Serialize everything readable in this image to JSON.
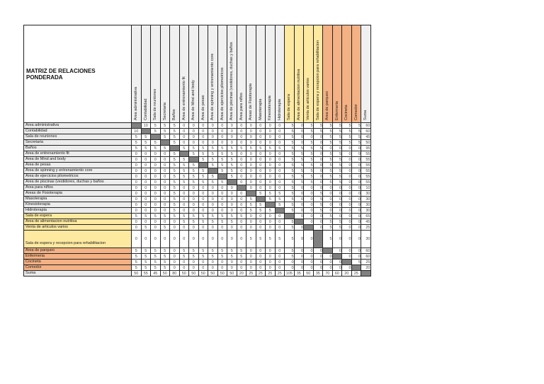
{
  "title": "MATRIZ DE RELACIONES PONDERADA",
  "columns": [
    {
      "label": "Area administrativa",
      "group": "g"
    },
    {
      "label": "Contabilidad",
      "group": "g"
    },
    {
      "label": "Sala de reuniones",
      "group": "g"
    },
    {
      "label": "Secretaria",
      "group": "g"
    },
    {
      "label": "Baños",
      "group": "g"
    },
    {
      "label": "Area de entrenamiento fit",
      "group": "g"
    },
    {
      "label": "Area de Mind and body",
      "group": "g"
    },
    {
      "label": "Area de pesas",
      "group": "g"
    },
    {
      "label": "Area de spinning y entrenamiento core",
      "group": "g"
    },
    {
      "label": "Area de ejercicios pliometricos",
      "group": "g"
    },
    {
      "label": "Area de piscinas (vestidores, duchas y baños",
      "group": "g"
    },
    {
      "label": "Area para niños",
      "group": "g"
    },
    {
      "label": "Areas de Fisioterapia",
      "group": "g"
    },
    {
      "label": "Masoterapia",
      "group": "g"
    },
    {
      "label": "Kinesioterapia",
      "group": "g"
    },
    {
      "label": "Hidroterapia",
      "group": "g"
    },
    {
      "label": "Sala de espera",
      "group": "y"
    },
    {
      "label": "Area de alimentacion nutritiva",
      "group": "y"
    },
    {
      "label": "Venta de articulos varios",
      "group": "y"
    },
    {
      "label": "Sala de espera y recepcion para rehabilitacion",
      "group": "y"
    },
    {
      "label": "Area de parqueo",
      "group": "o"
    },
    {
      "label": "Enfermeria",
      "group": "o"
    },
    {
      "label": "Cocineta",
      "group": "o"
    },
    {
      "label": "Comedor",
      "group": "o"
    },
    {
      "label": "Suma",
      "group": "g"
    }
  ],
  "rows": [
    {
      "label": "Area administrativa",
      "group": "g",
      "values": [
        "",
        10,
        5,
        5,
        5,
        0,
        0,
        0,
        0,
        0,
        0,
        0,
        0,
        0,
        0,
        0,
        5,
        0,
        5,
        5,
        5,
        5,
        5,
        5,
        60
      ]
    },
    {
      "label": "Contabilidad",
      "group": "g",
      "values": [
        10,
        "",
        5,
        5,
        5,
        0,
        0,
        0,
        0,
        0,
        0,
        0,
        0,
        0,
        0,
        0,
        5,
        0,
        5,
        5,
        5,
        5,
        5,
        5,
        60
      ]
    },
    {
      "label": "Sala de reuniones",
      "group": "g",
      "values": [
        5,
        5,
        "",
        5,
        5,
        0,
        0,
        0,
        0,
        0,
        0,
        0,
        0,
        0,
        0,
        0,
        5,
        0,
        0,
        0,
        5,
        5,
        5,
        5,
        45
      ]
    },
    {
      "label": "Secretaria",
      "group": "g",
      "values": [
        5,
        5,
        5,
        "",
        5,
        0,
        0,
        0,
        0,
        0,
        0,
        0,
        0,
        0,
        0,
        0,
        5,
        0,
        5,
        0,
        5,
        5,
        5,
        5,
        50
      ]
    },
    {
      "label": "Baños",
      "group": "g",
      "values": [
        5,
        5,
        5,
        5,
        "",
        5,
        5,
        5,
        5,
        5,
        5,
        5,
        5,
        5,
        5,
        5,
        5,
        5,
        5,
        5,
        0,
        0,
        0,
        0,
        95
      ]
    },
    {
      "label": "Area de entrenamiento fit",
      "group": "g",
      "values": [
        0,
        0,
        0,
        0,
        5,
        "",
        5,
        5,
        5,
        5,
        5,
        0,
        0,
        0,
        0,
        0,
        5,
        5,
        5,
        0,
        5,
        5,
        0,
        0,
        55
      ]
    },
    {
      "label": "Area de Mind and body",
      "group": "g",
      "values": [
        0,
        0,
        0,
        0,
        5,
        5,
        "",
        5,
        5,
        5,
        5,
        0,
        0,
        0,
        0,
        0,
        5,
        5,
        5,
        0,
        5,
        5,
        0,
        0,
        55
      ]
    },
    {
      "label": "Area de pesas",
      "group": "g",
      "values": [
        0,
        0,
        0,
        0,
        5,
        5,
        5,
        "",
        5,
        5,
        5,
        0,
        0,
        0,
        0,
        0,
        5,
        5,
        5,
        0,
        5,
        5,
        0,
        0,
        55
      ]
    },
    {
      "label": "Area de spinning y entrenamiento core",
      "group": "g",
      "values": [
        0,
        0,
        0,
        0,
        5,
        5,
        5,
        5,
        "",
        5,
        5,
        0,
        0,
        0,
        0,
        0,
        5,
        5,
        5,
        0,
        5,
        5,
        0,
        0,
        55
      ]
    },
    {
      "label": "Area de ejercicios pliometricos",
      "group": "g",
      "values": [
        0,
        0,
        0,
        0,
        5,
        5,
        5,
        5,
        5,
        "",
        5,
        0,
        0,
        0,
        0,
        0,
        5,
        5,
        5,
        0,
        5,
        5,
        0,
        0,
        55
      ]
    },
    {
      "label": "Area de piscinas (vestidores, duchas y baños",
      "group": "g",
      "values": [
        0,
        0,
        0,
        0,
        5,
        5,
        5,
        5,
        5,
        5,
        "",
        0,
        0,
        0,
        0,
        0,
        5,
        5,
        5,
        0,
        5,
        5,
        0,
        0,
        55
      ]
    },
    {
      "label": "Area para niños",
      "group": "g",
      "values": [
        0,
        0,
        0,
        0,
        5,
        0,
        0,
        0,
        0,
        0,
        0,
        "",
        0,
        0,
        0,
        0,
        5,
        0,
        0,
        0,
        0,
        0,
        0,
        0,
        10
      ]
    },
    {
      "label": "Areas de Fisioterapia",
      "group": "g",
      "values": [
        0,
        0,
        0,
        0,
        5,
        0,
        0,
        0,
        0,
        0,
        0,
        0,
        "",
        5,
        5,
        5,
        5,
        0,
        0,
        5,
        0,
        0,
        0,
        0,
        30
      ]
    },
    {
      "label": "Masoterapia",
      "group": "g",
      "values": [
        0,
        0,
        0,
        0,
        5,
        0,
        0,
        0,
        0,
        0,
        0,
        0,
        5,
        "",
        5,
        5,
        5,
        0,
        0,
        5,
        0,
        0,
        0,
        0,
        30
      ]
    },
    {
      "label": "Kinesioterapia",
      "group": "g",
      "values": [
        0,
        0,
        0,
        0,
        5,
        0,
        0,
        0,
        0,
        0,
        0,
        0,
        5,
        5,
        "",
        5,
        5,
        0,
        0,
        5,
        0,
        0,
        0,
        0,
        30
      ]
    },
    {
      "label": "Hidroterapia",
      "group": "g",
      "values": [
        0,
        0,
        0,
        0,
        5,
        0,
        0,
        0,
        0,
        0,
        0,
        0,
        5,
        5,
        5,
        "",
        5,
        0,
        0,
        5,
        0,
        0,
        0,
        0,
        30
      ]
    },
    {
      "label": "Sala de espera",
      "group": "y",
      "values": [
        5,
        5,
        5,
        5,
        5,
        5,
        5,
        5,
        5,
        5,
        5,
        5,
        0,
        0,
        0,
        0,
        "",
        0,
        0,
        0,
        5,
        0,
        0,
        0,
        65
      ]
    },
    {
      "label": "Area de alimentacion nutritiva",
      "group": "y",
      "values": [
        0,
        0,
        0,
        0,
        0,
        5,
        5,
        5,
        5,
        5,
        5,
        0,
        0,
        0,
        0,
        0,
        5,
        "",
        0,
        0,
        5,
        5,
        0,
        0,
        45
      ]
    },
    {
      "label": "Venta de articulos varios",
      "group": "y",
      "values": [
        0,
        5,
        0,
        5,
        0,
        0,
        0,
        0,
        0,
        0,
        0,
        0,
        0,
        0,
        0,
        0,
        5,
        0,
        "",
        0,
        5,
        5,
        0,
        0,
        25
      ]
    },
    {
      "label": "Sala de espera y recepcion para rehabilitacion",
      "group": "y",
      "tall": true,
      "values": [
        0,
        0,
        0,
        0,
        0,
        0,
        0,
        0,
        0,
        0,
        0,
        0,
        5,
        5,
        5,
        5,
        5,
        0,
        0,
        "",
        5,
        0,
        0,
        0,
        30
      ]
    },
    {
      "label": "Area de parqueo",
      "group": "o",
      "values": [
        5,
        5,
        5,
        5,
        0,
        5,
        5,
        5,
        5,
        5,
        5,
        5,
        0,
        0,
        0,
        0,
        5,
        0,
        0,
        0,
        "",
        0,
        0,
        0,
        60
      ]
    },
    {
      "label": "Enfermeria",
      "group": "o",
      "values": [
        5,
        5,
        5,
        5,
        0,
        5,
        5,
        5,
        5,
        5,
        5,
        5,
        0,
        0,
        0,
        0,
        5,
        0,
        0,
        0,
        0,
        "",
        0,
        0,
        60
      ]
    },
    {
      "label": "Cocineta",
      "group": "o",
      "values": [
        5,
        5,
        5,
        5,
        0,
        0,
        0,
        0,
        0,
        0,
        0,
        0,
        0,
        0,
        0,
        0,
        0,
        0,
        0,
        0,
        0,
        0,
        "",
        5,
        25
      ]
    },
    {
      "label": "Comedor",
      "group": "o",
      "values": [
        5,
        5,
        5,
        5,
        0,
        0,
        0,
        0,
        0,
        0,
        0,
        0,
        0,
        0,
        0,
        0,
        0,
        0,
        0,
        0,
        0,
        0,
        0,
        "",
        20
      ]
    }
  ],
  "sum_row": {
    "label": "Suma",
    "values": [
      50,
      55,
      45,
      50,
      80,
      50,
      50,
      50,
      50,
      50,
      50,
      20,
      25,
      25,
      25,
      25,
      105,
      35,
      50,
      35,
      70,
      60,
      20,
      25,
      ""
    ]
  },
  "colors": {
    "gray_header": "#f0f0f0",
    "yellow": "#fde9a0",
    "orange": "#f4b183",
    "diagonal": "#808080"
  }
}
